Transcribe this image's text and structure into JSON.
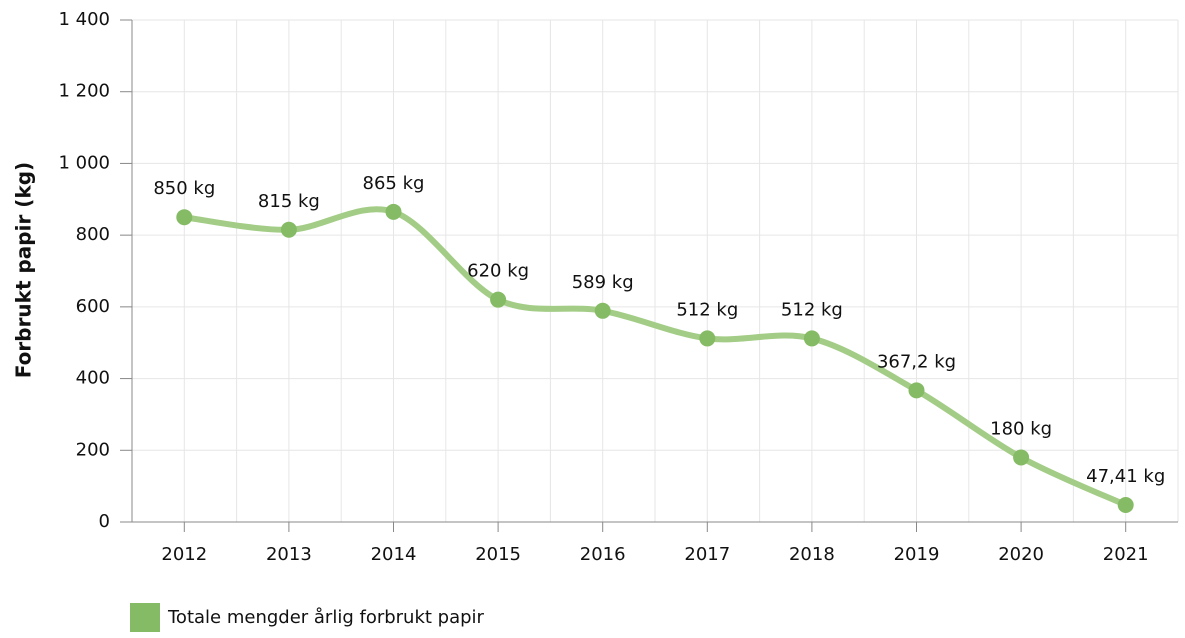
{
  "chart_data": {
    "type": "line",
    "y_label": "Forbrukt papir (kg)",
    "categories": [
      "2012",
      "2013",
      "2014",
      "2015",
      "2016",
      "2017",
      "2018",
      "2019",
      "2020",
      "2021"
    ],
    "series": [
      {
        "name": "Totale mengder årlig forbrukt papir",
        "color": "#85bb65",
        "values": [
          850,
          815,
          865,
          620,
          589,
          512,
          512,
          367.2,
          180,
          47.41
        ],
        "value_labels": [
          "850 kg",
          "815 kg",
          "865 kg",
          "620 kg",
          "589 kg",
          "512 kg",
          "512 kg",
          "367,2 kg",
          "180 kg",
          "47,41 kg"
        ]
      }
    ],
    "ylim": [
      0,
      1400
    ],
    "yticks": [
      0,
      200,
      400,
      600,
      800,
      {
        "value": 1000,
        "label": "1 000"
      },
      {
        "value": 1200,
        "label": "1 200"
      },
      {
        "value": 1400,
        "label": "1 400"
      }
    ],
    "grid": true,
    "legend": "bottom-left"
  }
}
